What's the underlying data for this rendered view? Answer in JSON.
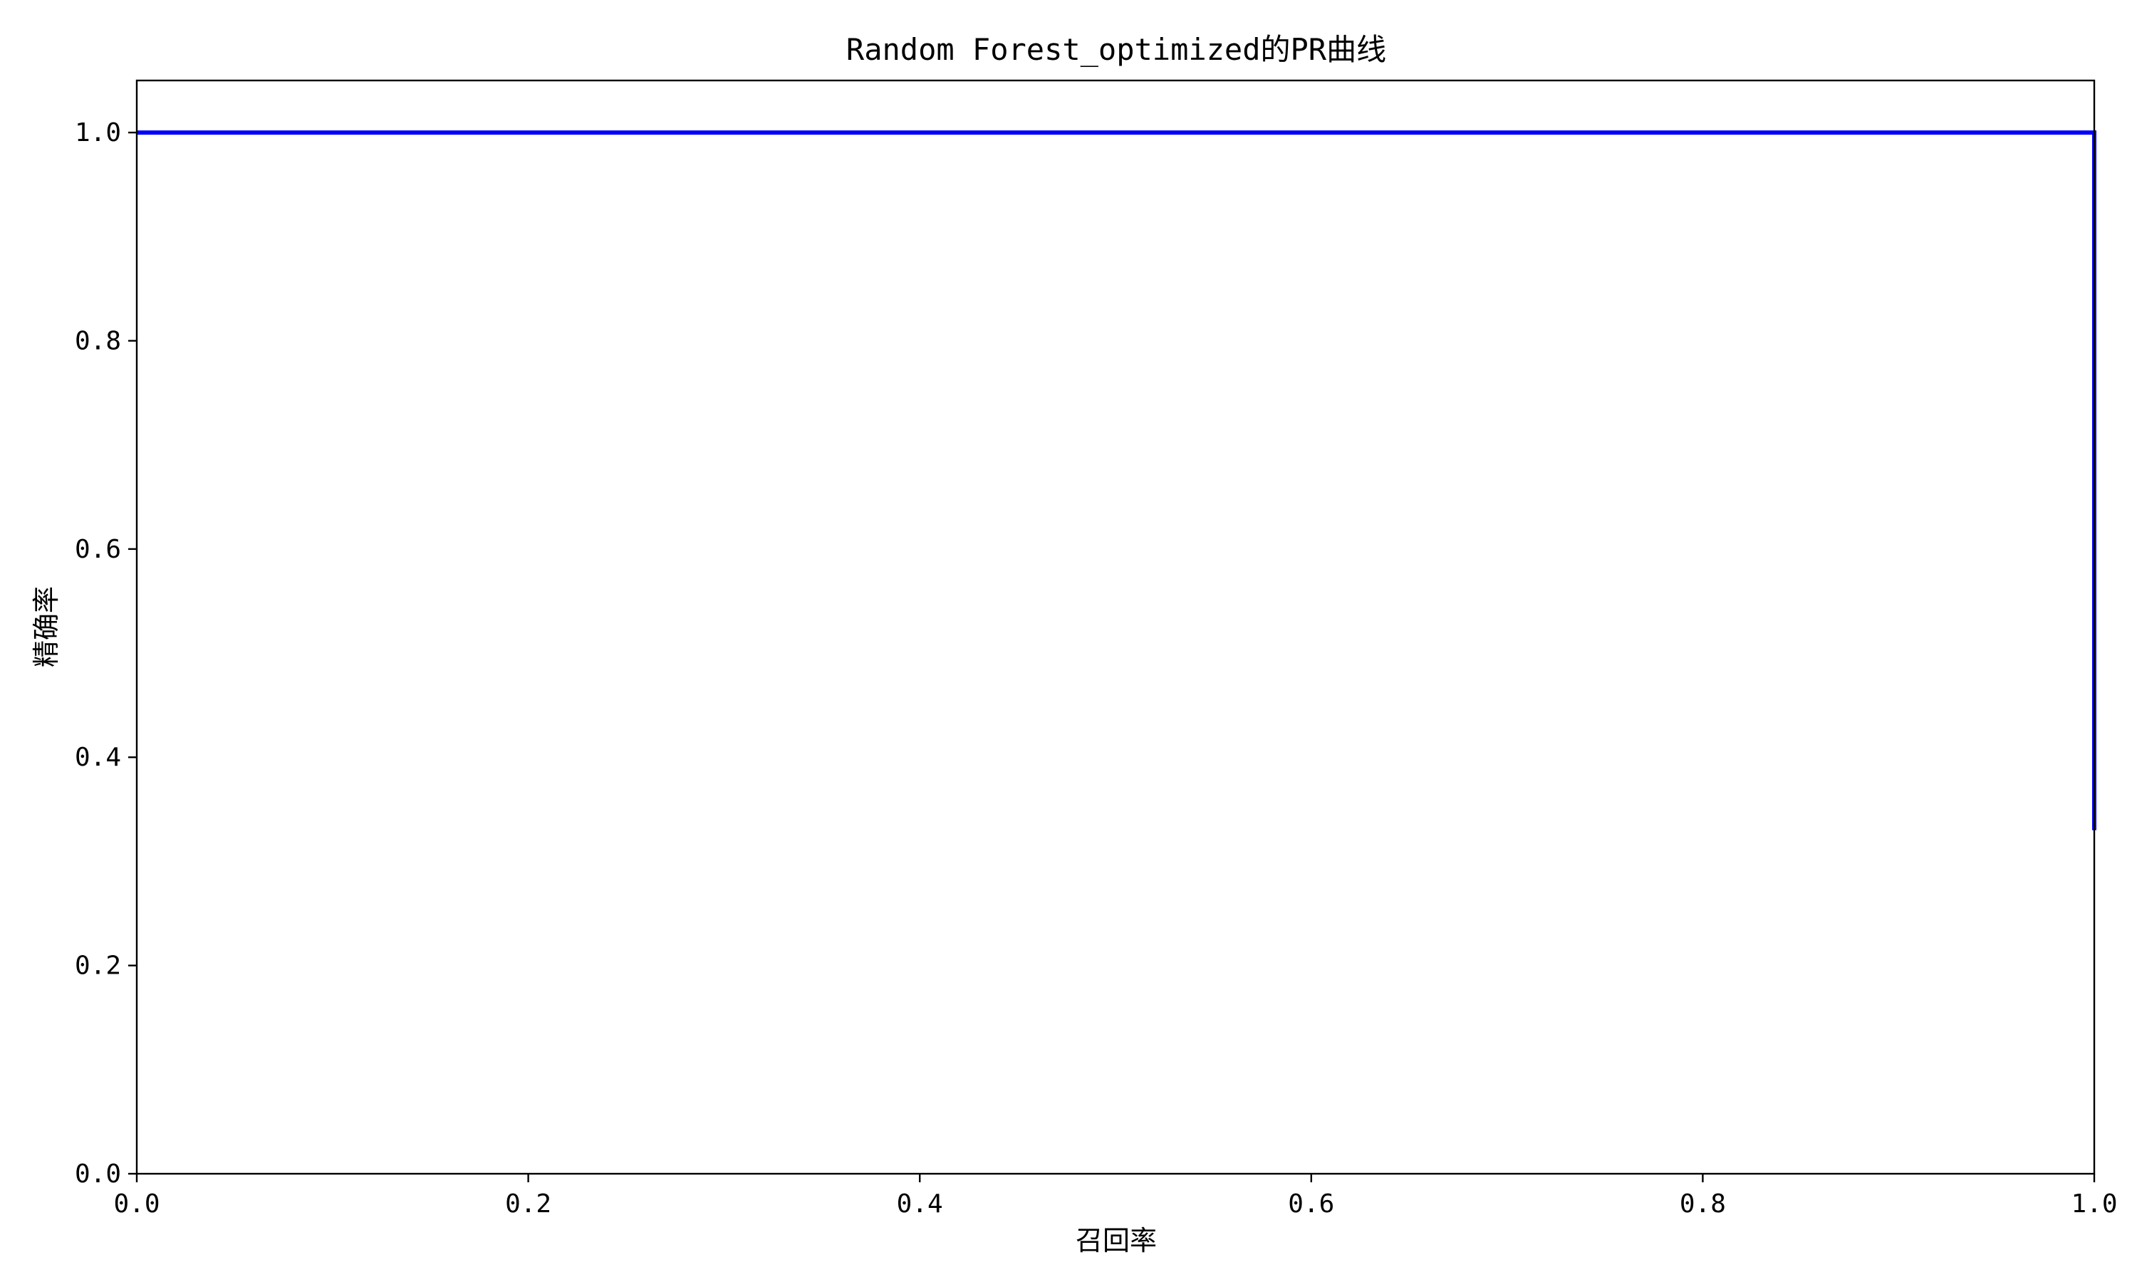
{
  "chart_data": {
    "type": "line",
    "title": "Random Forest_optimized的PR曲线",
    "xlabel": "召回率",
    "ylabel": "精确率",
    "xlim": [
      0.0,
      1.0
    ],
    "ylim": [
      0.0,
      1.05
    ],
    "xticks": [
      0.0,
      0.2,
      0.4,
      0.6,
      0.8,
      1.0
    ],
    "yticks": [
      0.0,
      0.2,
      0.4,
      0.6,
      0.8,
      1.0
    ],
    "xtick_labels": [
      "0.0",
      "0.2",
      "0.4",
      "0.6",
      "0.8",
      "1.0"
    ],
    "ytick_labels": [
      "0.0",
      "0.2",
      "0.4",
      "0.6",
      "0.8",
      "1.0"
    ],
    "grid": false,
    "legend": "none",
    "series": [
      {
        "color": "#0000ff",
        "x": [
          0.0,
          1.0,
          1.0
        ],
        "y": [
          1.0,
          1.0,
          0.33
        ]
      }
    ]
  }
}
